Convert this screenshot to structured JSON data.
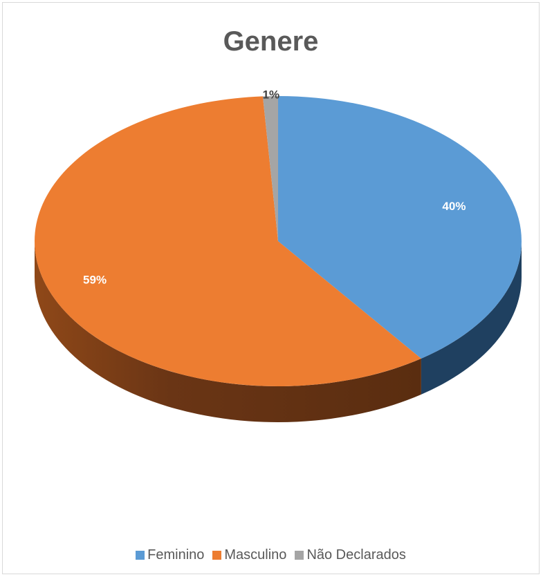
{
  "chart_data": {
    "type": "pie",
    "title": "Genere",
    "categories": [
      "Feminino",
      "Masculino",
      "Não Declarados"
    ],
    "values": [
      40,
      59,
      1
    ],
    "labels": [
      "40%",
      "59%",
      "1%"
    ],
    "colors": [
      "#5b9bd5",
      "#ed7d31",
      "#a5a5a5"
    ],
    "side_colors": [
      "#1f4060",
      "#6a3515",
      "#6e6e6e"
    ],
    "style": "3d",
    "legend_position": "bottom"
  }
}
